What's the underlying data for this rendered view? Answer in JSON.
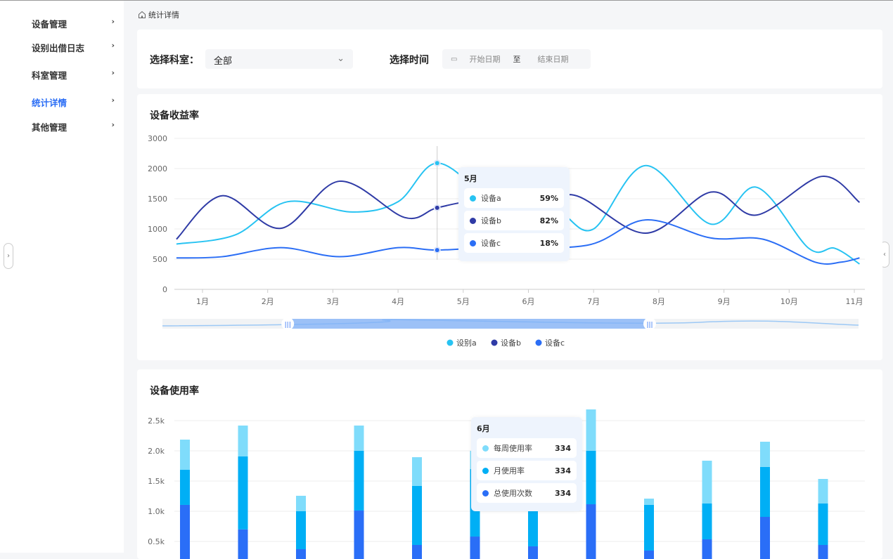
{
  "sidebar": {
    "items": [
      {
        "label": "设备管理",
        "active": false
      },
      {
        "label": "设别出借日志",
        "active": false
      },
      {
        "label": "科室管理",
        "active": false
      },
      {
        "label": "统计详情",
        "active": true
      },
      {
        "label": "其他管理",
        "active": false
      }
    ]
  },
  "breadcrumb": {
    "label": "统计详情"
  },
  "filters": {
    "department_label": "选择科室：",
    "department_value": "全部",
    "time_label": "选择时间",
    "start_placeholder": "开始日期",
    "separator": "至",
    "end_placeholder": "结束日期"
  },
  "colors": {
    "accent": "#2b6ef5",
    "series_a": "#27c3f2",
    "series_b": "#2f3ba6",
    "series_c": "#2b6ef5",
    "bar_week": "#7fdcfb",
    "bar_month": "#00aff5",
    "bar_total": "#2a6ef7"
  },
  "chart_data": [
    {
      "type": "line",
      "title": "设备收益率",
      "smooth": true,
      "grid": true,
      "legend": "bottom",
      "yticks": [
        "0",
        "500",
        "1000",
        "1500",
        "2000",
        "3000"
      ],
      "categories": [
        "1月",
        "2月",
        "3月",
        "4月",
        "5月",
        "6月",
        "7月",
        "8月",
        "9月",
        "10月",
        "11月"
      ],
      "series": [
        {
          "name": "设别a",
          "points": [
            [
              0.6,
              750
            ],
            [
              1.5,
              900
            ],
            [
              2.3,
              1450
            ],
            [
              3.3,
              1280
            ],
            [
              4.0,
              1450
            ],
            [
              4.6,
              2090
            ],
            [
              5.4,
              1500
            ],
            [
              6.1,
              1150
            ],
            [
              6.5,
              1250
            ],
            [
              7.0,
              1000
            ],
            [
              7.8,
              2050
            ],
            [
              8.8,
              1080
            ],
            [
              9.5,
              1690
            ],
            [
              10.3,
              680
            ],
            [
              10.7,
              680
            ],
            [
              11.08,
              420
            ]
          ]
        },
        {
          "name": "设备b",
          "points": [
            [
              0.6,
              830
            ],
            [
              1.3,
              1550
            ],
            [
              2.2,
              1010
            ],
            [
              3.1,
              1790
            ],
            [
              4.1,
              1190
            ],
            [
              4.6,
              1350
            ],
            [
              5.2,
              1450
            ],
            [
              6.0,
              1300
            ],
            [
              6.7,
              1560
            ],
            [
              7.8,
              930
            ],
            [
              8.8,
              1610
            ],
            [
              9.5,
              1230
            ],
            [
              10.5,
              1870
            ],
            [
              11.08,
              1440
            ]
          ]
        },
        {
          "name": "设备c",
          "points": [
            [
              0.6,
              520
            ],
            [
              1.3,
              540
            ],
            [
              2.2,
              690
            ],
            [
              3.1,
              540
            ],
            [
              4.0,
              690
            ],
            [
              4.6,
              650
            ],
            [
              5.5,
              700
            ],
            [
              6.9,
              730
            ],
            [
              7.8,
              1150
            ],
            [
              8.8,
              850
            ],
            [
              9.6,
              830
            ],
            [
              10.4,
              450
            ],
            [
              10.8,
              450
            ],
            [
              11.08,
              520
            ]
          ]
        }
      ],
      "zoom_range": [
        0.18,
        0.7
      ],
      "tooltip": {
        "title": "5月",
        "rows": [
          {
            "name": "设备a",
            "value": "59%"
          },
          {
            "name": "设备b",
            "value": "82%"
          },
          {
            "name": "设备c",
            "value": "18%"
          }
        ]
      }
    },
    {
      "type": "bar",
      "stacked": true,
      "title": "设备使用率",
      "grid": true,
      "yticks": [
        "0.5k",
        "1.0k",
        "1.5k",
        "2.0k",
        "2.5k"
      ],
      "series": [
        {
          "name": "总使用次数",
          "values": [
            1105,
            700,
            372,
            1012,
            442,
            581,
            419,
            1116,
            349,
            535,
            907,
            442
          ]
        },
        {
          "name": "月使用率",
          "values": [
            581,
            1207,
            628,
            988,
            977,
            1119,
            581,
            884,
            756,
            593,
            826,
            686
          ]
        },
        {
          "name": "每周使用率",
          "values": [
            500,
            512,
            256,
            419,
            476,
            300,
            116,
            686,
            104,
            709,
            418,
            407
          ]
        }
      ],
      "tooltip": {
        "title": "6月",
        "rows": [
          {
            "name": "每周使用率",
            "value": "334"
          },
          {
            "name": "月使用率",
            "value": "334"
          },
          {
            "name": "总使用次数",
            "value": "334"
          }
        ]
      }
    }
  ]
}
